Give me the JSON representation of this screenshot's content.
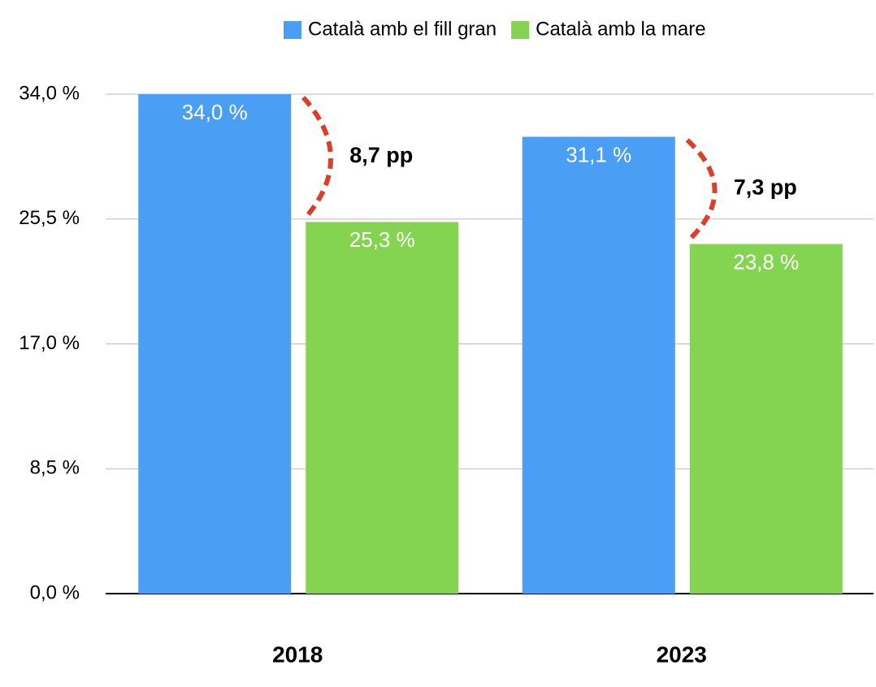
{
  "chart_data": {
    "type": "bar",
    "categories": [
      "2018",
      "2023"
    ],
    "series": [
      {
        "name": "Català amb el fill gran",
        "color": "#4a9ff5",
        "values": [
          34.0,
          31.1
        ],
        "value_labels": [
          "34,0 %",
          "31,1 %"
        ]
      },
      {
        "name": "Català amb la mare",
        "color": "#84d452",
        "values": [
          25.3,
          23.8
        ],
        "value_labels": [
          "25,3 %",
          "23,8 %"
        ]
      }
    ],
    "annotations": [
      "8,7 pp",
      "7,3 pp"
    ],
    "annotation_color": "#d9402b",
    "ylim": [
      0,
      34
    ],
    "yticks": [
      {
        "value": 0,
        "label": "0,0 %"
      },
      {
        "value": 8.5,
        "label": "8,5 %"
      },
      {
        "value": 17,
        "label": "17,0 %"
      },
      {
        "value": 25.5,
        "label": "25,5 %"
      },
      {
        "value": 34,
        "label": "34,0 %"
      }
    ],
    "grid": true,
    "legend": "top"
  }
}
